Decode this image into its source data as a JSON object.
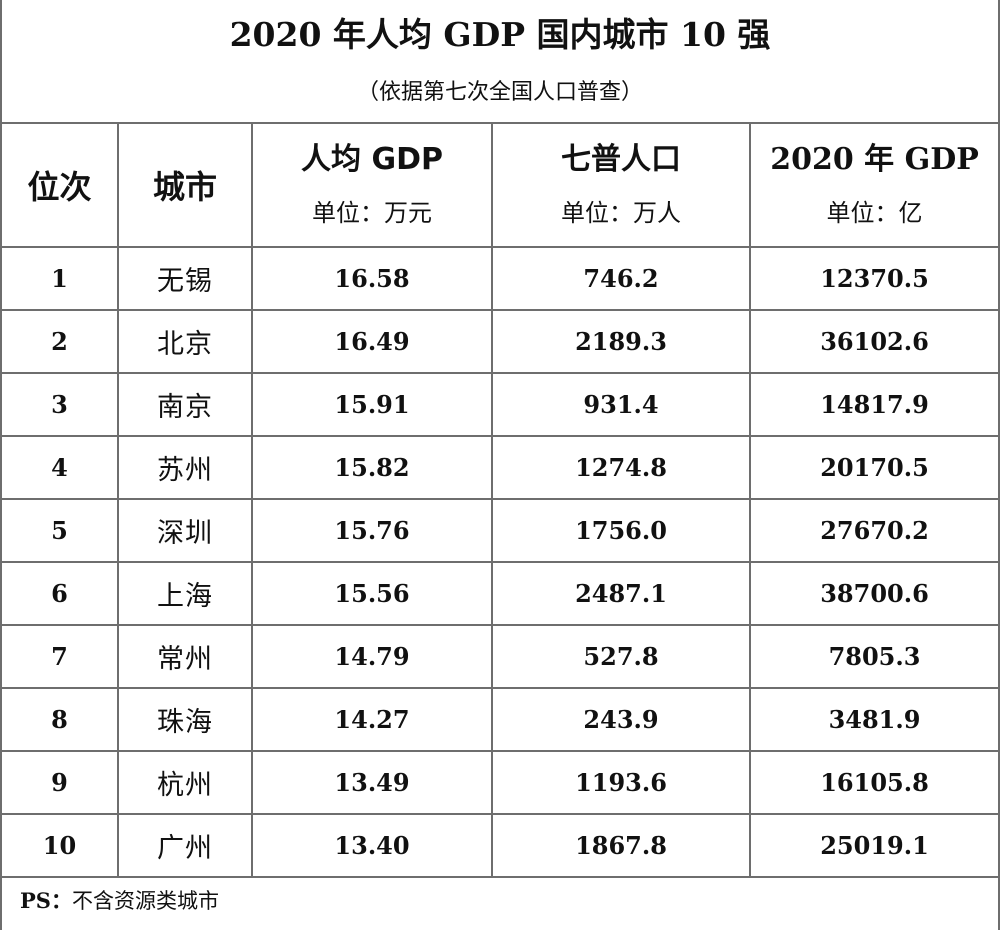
{
  "title": "2020 年人均 GDP 国内城市 10 强",
  "subtitle": "（依据第七次全国人口普查）",
  "headers": {
    "rank": "位次",
    "city": "城市",
    "gdp_per_capita": "人均 GDP",
    "gdp_per_capita_unit": "单位：万元",
    "population": "七普人口",
    "population_unit": "单位：万人",
    "gdp": "2020 年 GDP",
    "gdp_unit": "单位：亿"
  },
  "rows": [
    {
      "rank": "1",
      "city": "无锡",
      "gdp_per_capita": "16.58",
      "population": "746.2",
      "gdp": "12370.5"
    },
    {
      "rank": "2",
      "city": "北京",
      "gdp_per_capita": "16.49",
      "population": "2189.3",
      "gdp": "36102.6"
    },
    {
      "rank": "3",
      "city": "南京",
      "gdp_per_capita": "15.91",
      "population": "931.4",
      "gdp": "14817.9"
    },
    {
      "rank": "4",
      "city": "苏州",
      "gdp_per_capita": "15.82",
      "population": "1274.8",
      "gdp": "20170.5"
    },
    {
      "rank": "5",
      "city": "深圳",
      "gdp_per_capita": "15.76",
      "population": "1756.0",
      "gdp": "27670.2"
    },
    {
      "rank": "6",
      "city": "上海",
      "gdp_per_capita": "15.56",
      "population": "2487.1",
      "gdp": "38700.6"
    },
    {
      "rank": "7",
      "city": "常州",
      "gdp_per_capita": "14.79",
      "population": "527.8",
      "gdp": "7805.3"
    },
    {
      "rank": "8",
      "city": "珠海",
      "gdp_per_capita": "14.27",
      "population": "243.9",
      "gdp": "3481.9"
    },
    {
      "rank": "9",
      "city": "杭州",
      "gdp_per_capita": "13.49",
      "population": "1193.6",
      "gdp": "16105.8"
    },
    {
      "rank": "10",
      "city": "广州",
      "gdp_per_capita": "13.40",
      "population": "1867.8",
      "gdp": "25019.1"
    }
  ],
  "footnote": {
    "prefix": "PS：",
    "text": "不含资源类城市"
  }
}
